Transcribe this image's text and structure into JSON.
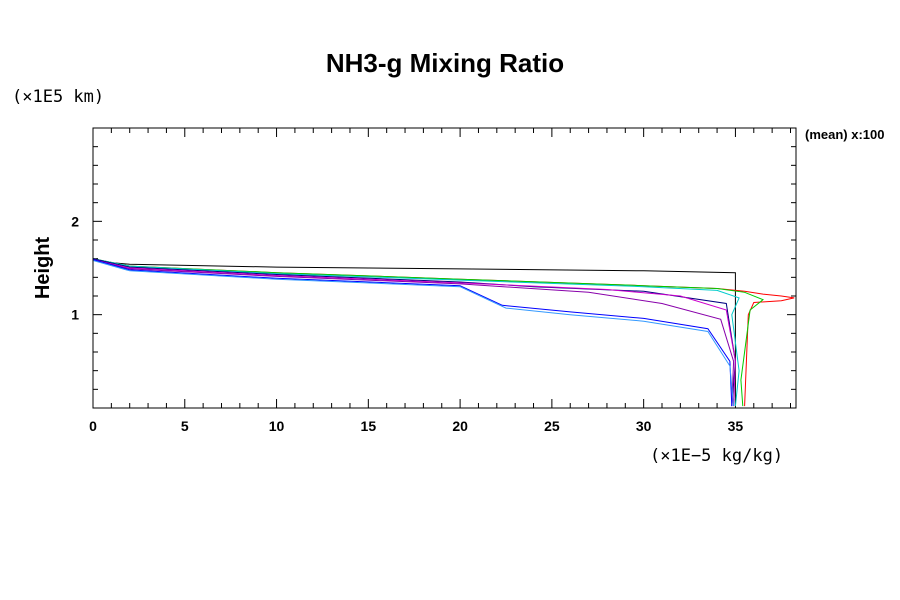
{
  "chart_data": {
    "type": "line",
    "title": "NH3-g Mixing Ratio",
    "xlabel": "",
    "ylabel": "Height",
    "x_unit_label": "(×1E−5 kg/kg)",
    "y_unit_label": "(×1E5 km)",
    "annotation": "(mean) x:100",
    "xlim": [
      0,
      38.3
    ],
    "ylim": [
      0,
      3.0
    ],
    "x_ticks": [
      0,
      5,
      10,
      15,
      20,
      25,
      30,
      35
    ],
    "y_ticks": [
      1,
      2
    ],
    "series": [
      {
        "name": "initial",
        "color": "#000000",
        "x": [
          0,
          0.3,
          2,
          10,
          20,
          30,
          35,
          35,
          35
        ],
        "y": [
          1.6,
          1.57,
          1.54,
          1.51,
          1.49,
          1.47,
          1.45,
          0.5,
          0.02
        ]
      },
      {
        "name": "red",
        "color": "#ff0000",
        "x": [
          0,
          2,
          10,
          20,
          30,
          34,
          35.5,
          36.5,
          37.5,
          38.2,
          37.5,
          36,
          35.7,
          35.6,
          35.5
        ],
        "y": [
          1.6,
          1.52,
          1.45,
          1.38,
          1.31,
          1.28,
          1.25,
          1.22,
          1.2,
          1.18,
          1.15,
          1.13,
          1.0,
          0.5,
          0.02
        ]
      },
      {
        "name": "green",
        "color": "#00cc00",
        "x": [
          0,
          2,
          10,
          20,
          30,
          34,
          35.5,
          36.5,
          35.8,
          35.5,
          35.3,
          35.4
        ],
        "y": [
          1.6,
          1.52,
          1.45,
          1.38,
          1.31,
          1.28,
          1.24,
          1.16,
          1.05,
          0.6,
          0.3,
          0.02
        ]
      },
      {
        "name": "cyan",
        "color": "#00cccc",
        "x": [
          0,
          2,
          10,
          20,
          30,
          34,
          35.2,
          34.8,
          35.2,
          35.0
        ],
        "y": [
          1.6,
          1.52,
          1.44,
          1.37,
          1.3,
          1.26,
          1.18,
          1.0,
          0.4,
          0.02
        ]
      },
      {
        "name": "navy",
        "color": "#000080",
        "x": [
          0,
          2,
          10,
          20,
          24,
          30,
          34.5,
          35.0,
          34.8
        ],
        "y": [
          1.6,
          1.51,
          1.43,
          1.35,
          1.3,
          1.25,
          1.12,
          0.5,
          0.02
        ]
      },
      {
        "name": "magenta",
        "color": "#cc00cc",
        "x": [
          0,
          2,
          10,
          20,
          28,
          32,
          34.5,
          35.0,
          34.9
        ],
        "y": [
          1.59,
          1.5,
          1.42,
          1.34,
          1.27,
          1.2,
          1.05,
          0.5,
          0.02
        ]
      },
      {
        "name": "purple",
        "color": "#8800aa",
        "x": [
          0,
          2,
          10,
          20,
          27,
          31,
          34.2,
          34.9,
          34.8
        ],
        "y": [
          1.59,
          1.49,
          1.41,
          1.33,
          1.24,
          1.12,
          0.95,
          0.5,
          0.02
        ]
      },
      {
        "name": "blue",
        "color": "#0000ff",
        "x": [
          0,
          2,
          10,
          20,
          22.3,
          26,
          30,
          33.5,
          34.7,
          34.8
        ],
        "y": [
          1.59,
          1.48,
          1.39,
          1.31,
          1.1,
          1.03,
          0.96,
          0.85,
          0.5,
          0.02
        ]
      },
      {
        "name": "lightblue",
        "color": "#3399ff",
        "x": [
          0,
          2,
          10,
          20,
          22.5,
          26,
          30,
          33.5,
          34.7,
          34.9
        ],
        "y": [
          1.58,
          1.47,
          1.38,
          1.3,
          1.07,
          1.0,
          0.93,
          0.82,
          0.45,
          0.02
        ]
      }
    ]
  }
}
